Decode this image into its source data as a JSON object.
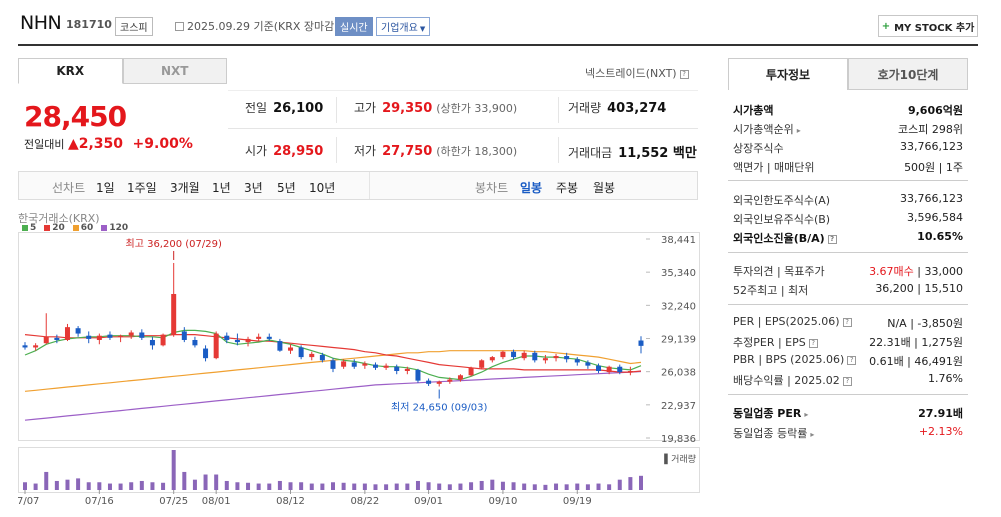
{
  "header": {
    "title": "NHN",
    "code": "181710",
    "market": "코스피",
    "date": "2025.09.29  기준(KRX 장마감)",
    "realtime": "실시간",
    "company_info": "기업개요",
    "mystock": "MY STOCK 추가"
  },
  "tabs": [
    "KRX",
    "NXT"
  ],
  "nxt_label": "넥스트레이드(NXT)",
  "price": {
    "current": "28,450",
    "change_label": "전일대비",
    "change": "▲2,350",
    "change_pct": "+9.00%"
  },
  "quote": {
    "prev_label": "전일",
    "prev": "26,100",
    "high_label": "고가",
    "high": "29,350",
    "upper_limit": "(상한가 33,900)",
    "volume_label": "거래량",
    "volume": "403,274",
    "open_label": "시가",
    "open": "28,950",
    "low_label": "저가",
    "low": "27,750",
    "lower_limit": "(하한가 18,300)",
    "amount_label": "거래대금",
    "amount": "11,552 백만"
  },
  "chart_tabs": {
    "line_chart": "선차트",
    "periods": [
      "1일",
      "1주일",
      "3개월",
      "1년",
      "3년",
      "5년",
      "10년"
    ],
    "candle_chart": "봉차트",
    "candles": [
      "일봉",
      "주봉",
      "월봉"
    ]
  },
  "exchange": "한국거래소(KRX)",
  "legend": [
    {
      "label": "5",
      "color": "#4caf50"
    },
    {
      "label": "20",
      "color": "#e53935"
    },
    {
      "label": "60",
      "color": "#f0a030"
    },
    {
      "label": "120",
      "color": "#9c5fc7"
    }
  ],
  "chart_data": {
    "type": "candlestick",
    "y_ticks": [
      "38,441",
      "35,340",
      "32,240",
      "29,139",
      "26,038",
      "22,937",
      "19,836"
    ],
    "ylim": [
      19836,
      38441
    ],
    "x_ticks": [
      "07/07",
      "07/16",
      "07/25",
      "08/01",
      "08/12",
      "08/22",
      "09/01",
      "09/10",
      "09/19"
    ],
    "x_tick_index": [
      0,
      7,
      14,
      18,
      25,
      32,
      38,
      45,
      52
    ],
    "annotation_high": "최고 36,200 (07/29)",
    "annotation_low": "최저 24,650 (09/03)",
    "volume_label": "거래량",
    "candles": [
      {
        "o": 28500,
        "h": 28800,
        "l": 28100,
        "c": 28300
      },
      {
        "o": 28300,
        "h": 28700,
        "l": 28000,
        "c": 28500
      },
      {
        "o": 28700,
        "h": 31500,
        "l": 28600,
        "c": 29300
      },
      {
        "o": 29200,
        "h": 29500,
        "l": 28700,
        "c": 29000
      },
      {
        "o": 29000,
        "h": 30500,
        "l": 28900,
        "c": 30200
      },
      {
        "o": 30100,
        "h": 30300,
        "l": 29300,
        "c": 29600
      },
      {
        "o": 29400,
        "h": 29800,
        "l": 28700,
        "c": 29100
      },
      {
        "o": 29000,
        "h": 29600,
        "l": 28600,
        "c": 29400
      },
      {
        "o": 29500,
        "h": 29800,
        "l": 29000,
        "c": 29200
      },
      {
        "o": 29300,
        "h": 29500,
        "l": 28800,
        "c": 29400
      },
      {
        "o": 29400,
        "h": 29900,
        "l": 29100,
        "c": 29700
      },
      {
        "o": 29700,
        "h": 30000,
        "l": 29000,
        "c": 29200
      },
      {
        "o": 29000,
        "h": 29300,
        "l": 28100,
        "c": 28500
      },
      {
        "o": 28500,
        "h": 29600,
        "l": 28400,
        "c": 29500
      },
      {
        "o": 29500,
        "h": 36200,
        "l": 29300,
        "c": 33300
      },
      {
        "o": 29800,
        "h": 30200,
        "l": 28800,
        "c": 29000
      },
      {
        "o": 29000,
        "h": 29300,
        "l": 28300,
        "c": 28500
      },
      {
        "o": 28200,
        "h": 28500,
        "l": 27000,
        "c": 27300
      },
      {
        "o": 27300,
        "h": 29800,
        "l": 27200,
        "c": 29600
      },
      {
        "o": 29400,
        "h": 29700,
        "l": 28700,
        "c": 29000
      },
      {
        "o": 29000,
        "h": 29600,
        "l": 28500,
        "c": 28800
      },
      {
        "o": 28800,
        "h": 29300,
        "l": 28400,
        "c": 29100
      },
      {
        "o": 29100,
        "h": 29600,
        "l": 28900,
        "c": 29300
      },
      {
        "o": 29300,
        "h": 29600,
        "l": 28900,
        "c": 29100
      },
      {
        "o": 28900,
        "h": 29100,
        "l": 27900,
        "c": 28000
      },
      {
        "o": 28000,
        "h": 28600,
        "l": 27700,
        "c": 28300
      },
      {
        "o": 28300,
        "h": 28500,
        "l": 27200,
        "c": 27400
      },
      {
        "o": 27400,
        "h": 27900,
        "l": 27100,
        "c": 27700
      },
      {
        "o": 27600,
        "h": 27800,
        "l": 26900,
        "c": 27100
      },
      {
        "o": 27100,
        "h": 27300,
        "l": 26000,
        "c": 26300
      },
      {
        "o": 26500,
        "h": 27200,
        "l": 26300,
        "c": 27000
      },
      {
        "o": 26900,
        "h": 27200,
        "l": 26300,
        "c": 26500
      },
      {
        "o": 26600,
        "h": 27000,
        "l": 26300,
        "c": 26800
      },
      {
        "o": 26700,
        "h": 26900,
        "l": 26200,
        "c": 26400
      },
      {
        "o": 26400,
        "h": 26800,
        "l": 26200,
        "c": 26600
      },
      {
        "o": 26500,
        "h": 26700,
        "l": 25800,
        "c": 26100
      },
      {
        "o": 26100,
        "h": 26500,
        "l": 25800,
        "c": 26300
      },
      {
        "o": 26200,
        "h": 26300,
        "l": 25000,
        "c": 25200
      },
      {
        "o": 25200,
        "h": 25400,
        "l": 24700,
        "c": 24900
      },
      {
        "o": 24900,
        "h": 25200,
        "l": 24650,
        "c": 25100
      },
      {
        "o": 25100,
        "h": 25500,
        "l": 24900,
        "c": 25300
      },
      {
        "o": 25300,
        "h": 25800,
        "l": 25100,
        "c": 25700
      },
      {
        "o": 25700,
        "h": 26500,
        "l": 25600,
        "c": 26400
      },
      {
        "o": 26400,
        "h": 27200,
        "l": 26300,
        "c": 27100
      },
      {
        "o": 27100,
        "h": 27500,
        "l": 26900,
        "c": 27400
      },
      {
        "o": 27400,
        "h": 28000,
        "l": 27200,
        "c": 27900
      },
      {
        "o": 27900,
        "h": 28100,
        "l": 27200,
        "c": 27400
      },
      {
        "o": 27300,
        "h": 28000,
        "l": 27100,
        "c": 27800
      },
      {
        "o": 27800,
        "h": 28000,
        "l": 26900,
        "c": 27100
      },
      {
        "o": 27100,
        "h": 27600,
        "l": 26800,
        "c": 27300
      },
      {
        "o": 27300,
        "h": 27700,
        "l": 27000,
        "c": 27500
      },
      {
        "o": 27500,
        "h": 27800,
        "l": 26900,
        "c": 27200
      },
      {
        "o": 27200,
        "h": 27400,
        "l": 26600,
        "c": 26900
      },
      {
        "o": 26900,
        "h": 27100,
        "l": 26300,
        "c": 26600
      },
      {
        "o": 26600,
        "h": 26800,
        "l": 25900,
        "c": 26100
      },
      {
        "o": 26000,
        "h": 26600,
        "l": 25800,
        "c": 26500
      },
      {
        "o": 26500,
        "h": 26700,
        "l": 25800,
        "c": 26000
      },
      {
        "o": 26000,
        "h": 26500,
        "l": 25700,
        "c": 26100
      },
      {
        "o": 28950,
        "h": 29350,
        "l": 27750,
        "c": 28450
      }
    ],
    "volumes": [
      30,
      25,
      70,
      35,
      40,
      45,
      30,
      30,
      25,
      25,
      30,
      35,
      30,
      28,
      155,
      70,
      40,
      60,
      60,
      35,
      30,
      28,
      25,
      25,
      35,
      30,
      30,
      25,
      25,
      30,
      28,
      25,
      25,
      22,
      22,
      25,
      25,
      35,
      30,
      25,
      22,
      25,
      30,
      35,
      40,
      32,
      30,
      25,
      22,
      20,
      25,
      22,
      25,
      22,
      25,
      22,
      40,
      50,
      55
    ],
    "ma5": [
      27600,
      28000,
      28600,
      28900,
      29100,
      29200,
      29300,
      29300,
      29400,
      29400,
      29400,
      29300,
      29300,
      29200,
      29700,
      29900,
      29900,
      29800,
      29600,
      28800,
      28600,
      28700,
      28800,
      29000,
      28800,
      28600,
      28300,
      28000,
      27700,
      27300,
      27100,
      27000,
      26800,
      26600,
      26500,
      26500,
      26400,
      26200,
      25800,
      25500,
      25400,
      25300,
      25600,
      26000,
      26500,
      26900,
      27200,
      27500,
      27500,
      27400,
      27400,
      27300,
      27200,
      26900,
      26600,
      26400,
      26300,
      26200,
      26600
    ],
    "ma20": [
      29500,
      29400,
      29300,
      29300,
      29200,
      29200,
      29200,
      29200,
      29300,
      29300,
      29300,
      29400,
      29400,
      29400,
      29500,
      29500,
      29500,
      29400,
      29300,
      29200,
      29100,
      29000,
      28900,
      28900,
      28800,
      28700,
      28600,
      28500,
      28400,
      28300,
      28200,
      28100,
      27900,
      27800,
      27600,
      27500,
      27300,
      27100,
      26900,
      26700,
      26600,
      26500,
      26400,
      26300,
      26300,
      26300,
      26300,
      26200,
      26200,
      26200,
      26200,
      26200,
      26200,
      26200,
      26200,
      26100,
      26000,
      26000,
      26100
    ],
    "ma60": [
      24200,
      24300,
      24400,
      24500,
      24600,
      24700,
      24800,
      24900,
      25000,
      25100,
      25200,
      25300,
      25400,
      25500,
      25600,
      25700,
      25800,
      25900,
      26000,
      26100,
      26200,
      26300,
      26400,
      26500,
      26600,
      26700,
      26800,
      26900,
      27000,
      27100,
      27200,
      27300,
      27400,
      27500,
      27600,
      27700,
      27800,
      27800,
      27900,
      27900,
      28000,
      28000,
      28000,
      28000,
      28000,
      28000,
      28000,
      28000,
      27900,
      27900,
      27800,
      27700,
      27600,
      27500,
      27400,
      27200,
      27000,
      26800,
      26900
    ],
    "ma120": [
      21500,
      21600,
      21700,
      21800,
      21900,
      22000,
      22100,
      22200,
      22300,
      22400,
      22500,
      22600,
      22700,
      22800,
      22900,
      23000,
      23100,
      23200,
      23300,
      23400,
      23500,
      23600,
      23700,
      23800,
      23900,
      24000,
      24100,
      24200,
      24300,
      24400,
      24500,
      24600,
      24700,
      24800,
      24850,
      24900,
      24950,
      25000,
      25050,
      25100,
      25150,
      25200,
      25250,
      25300,
      25350,
      25400,
      25450,
      25500,
      25550,
      25600,
      25650,
      25700,
      25750,
      25800,
      25850,
      25900,
      25950,
      26000,
      26050
    ]
  },
  "rtabs": [
    "투자정보",
    "호가10단계"
  ],
  "invest": {
    "cap_label": "시가총액",
    "cap": "9,606억원",
    "rank_label": "시가총액순위",
    "rank": "코스피  298위",
    "shares_label": "상장주식수",
    "shares": "33,766,123",
    "par_label": "액면가 | 매매단위",
    "par": "500원  |  1주",
    "foreign_limit_label": "외국인한도주식수(A)",
    "foreign_limit": "33,766,123",
    "foreign_hold_label": "외국인보유주식수(B)",
    "foreign_hold": "3,596,584",
    "foreign_ratio_label": "외국인소진율(B/A)",
    "foreign_ratio": "10.65%",
    "opinion_label": "투자의견 | 목표주가",
    "opinion": "3.67매수",
    "target": "|  33,000",
    "w52_label": "52주최고 | 최저",
    "w52": "36,200  |  15,510",
    "per_label": "PER | EPS(2025.06)",
    "per": "N/A  |  -3,850원",
    "est_per_label": "추정PER | EPS",
    "est_per": "22.31배  |  1,275원",
    "pbr_label": "PBR | BPS (2025.06)",
    "pbr": "0.61배  |  46,491원",
    "div_label": "배당수익률 | 2025.02",
    "div": "1.76%",
    "ind_per_label": "동일업종 PER",
    "ind_per": "27.91배",
    "ind_chg_label": "동일업종 등락률",
    "ind_chg": "+2.13%"
  }
}
